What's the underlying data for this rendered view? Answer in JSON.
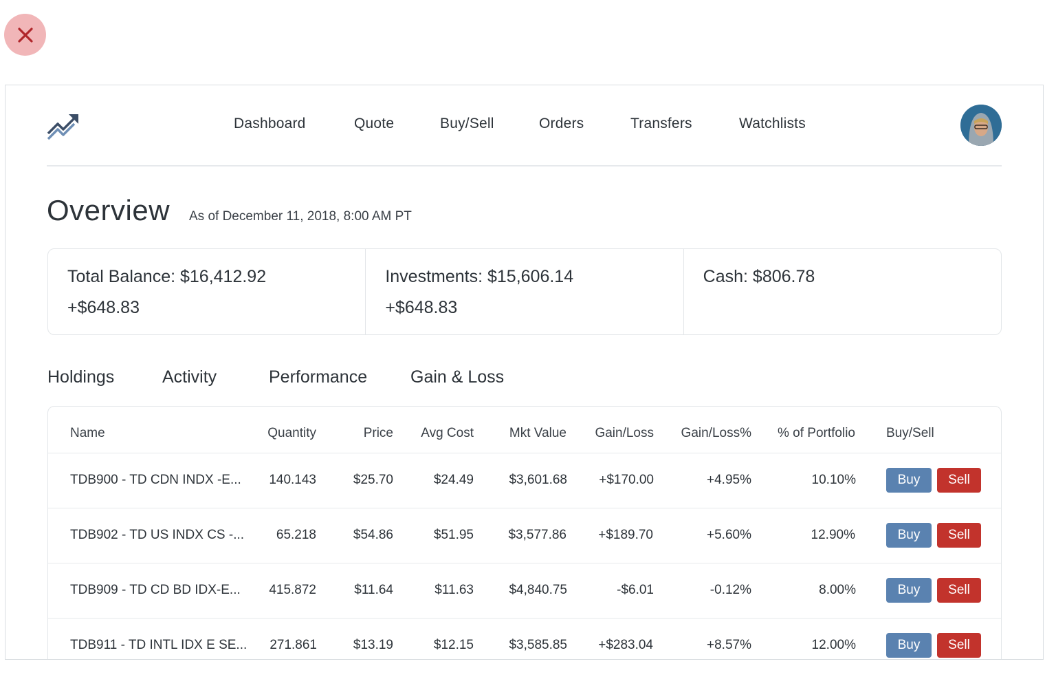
{
  "close": {
    "icon": "close-icon"
  },
  "header": {
    "logo_icon": "trending-up-icon",
    "nav": [
      "Dashboard",
      "Quote",
      "Buy/Sell",
      "Orders",
      "Transfers",
      "Watchlists"
    ],
    "avatar_icon": "user-avatar"
  },
  "overview": {
    "title": "Overview",
    "as_of": "As of December 11, 2018, 8:00 AM PT"
  },
  "summary": {
    "total_balance": "Total Balance: $16,412.92",
    "total_change": "+$648.83",
    "investments": "Investments: $15,606.14",
    "investments_change": "+$648.83",
    "cash": "Cash: $806.78"
  },
  "tabs": [
    "Holdings",
    "Activity",
    "Performance",
    "Gain & Loss"
  ],
  "table": {
    "headers": [
      "Name",
      "Quantity",
      "Price",
      "Avg Cost",
      "Mkt Value",
      "Gain/Loss",
      "Gain/Loss%",
      "% of Portfolio",
      "Buy/Sell"
    ],
    "buy_label": "Buy",
    "sell_label": "Sell",
    "rows": [
      [
        "TDB900 - TD CDN INDX -E...",
        "140.143",
        "$25.70",
        "$24.49",
        "$3,601.68",
        "+$170.00",
        "+4.95%",
        "10.10%"
      ],
      [
        "TDB902 - TD US INDX CS -...",
        "65.218",
        "$54.86",
        "$51.95",
        "$3,577.86",
        "+$189.70",
        "+5.60%",
        "12.90%"
      ],
      [
        "TDB909 - TD CD BD IDX-E...",
        "415.872",
        "$11.64",
        "$11.63",
        "$4,840.75",
        "-$6.01",
        "-0.12%",
        "8.00%"
      ],
      [
        "TDB911 - TD INTL IDX E SE...",
        "271.861",
        "$13.19",
        "$12.15",
        "$3,585.85",
        "+$283.04",
        "+8.57%",
        "12.00%"
      ]
    ]
  },
  "colors": {
    "buy": "#5a82b0",
    "sell": "#c2332c",
    "close_bg": "#f1b6b8",
    "close_x": "#b0262b"
  }
}
